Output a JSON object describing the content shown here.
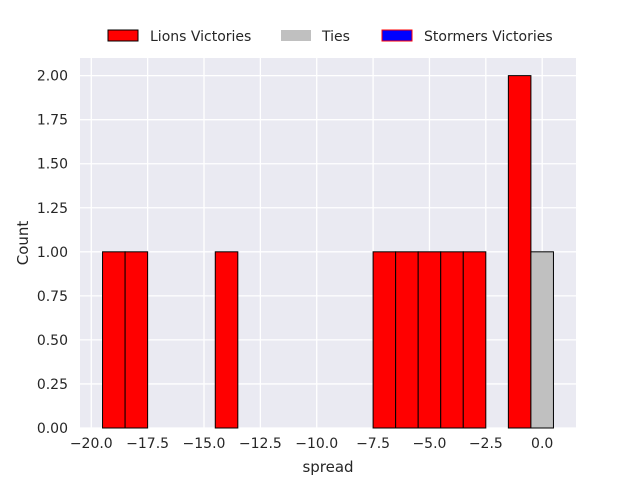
{
  "chart_data": {
    "type": "bar",
    "title": "",
    "xlabel": "spread",
    "ylabel": "Count",
    "xlim": [
      -20.5,
      1.5
    ],
    "ylim": [
      0,
      2.1
    ],
    "xticks": [
      -20.0,
      -17.5,
      -15.0,
      -12.5,
      -10.0,
      -7.5,
      -5.0,
      -2.5,
      0.0
    ],
    "xtick_labels": [
      "−20.0",
      "−17.5",
      "−15.0",
      "−12.5",
      "−10.0",
      "−7.5",
      "−5.0",
      "−2.5",
      "0.0"
    ],
    "yticks": [
      0.0,
      0.25,
      0.5,
      0.75,
      1.0,
      1.25,
      1.5,
      1.75,
      2.0
    ],
    "ytick_labels": [
      "0.00",
      "0.25",
      "0.50",
      "0.75",
      "1.00",
      "1.25",
      "1.50",
      "1.75",
      "2.00"
    ],
    "grid": true,
    "legend_position": "top-center",
    "background": "#eaeaf2",
    "series": [
      {
        "name": "Lions Victories",
        "color": "#ff0000",
        "edgecolor": "#000000",
        "bins": [
          {
            "x0": -19.5,
            "x1": -18.5,
            "count": 1
          },
          {
            "x0": -18.5,
            "x1": -17.5,
            "count": 1
          },
          {
            "x0": -14.5,
            "x1": -13.5,
            "count": 1
          },
          {
            "x0": -7.5,
            "x1": -6.5,
            "count": 1
          },
          {
            "x0": -6.5,
            "x1": -5.5,
            "count": 1
          },
          {
            "x0": -5.5,
            "x1": -4.5,
            "count": 1
          },
          {
            "x0": -4.5,
            "x1": -3.5,
            "count": 1
          },
          {
            "x0": -3.5,
            "x1": -2.5,
            "count": 1
          },
          {
            "x0": -1.5,
            "x1": -0.5,
            "count": 2
          }
        ]
      },
      {
        "name": "Ties",
        "color": "#c0c0c0",
        "edgecolor": "#000000",
        "bins": [
          {
            "x0": -0.5,
            "x1": 0.5,
            "count": 1
          }
        ]
      },
      {
        "name": "Stormers Victories",
        "color": "#0000ff",
        "edgecolor": "#ff0000",
        "bins": []
      }
    ]
  }
}
